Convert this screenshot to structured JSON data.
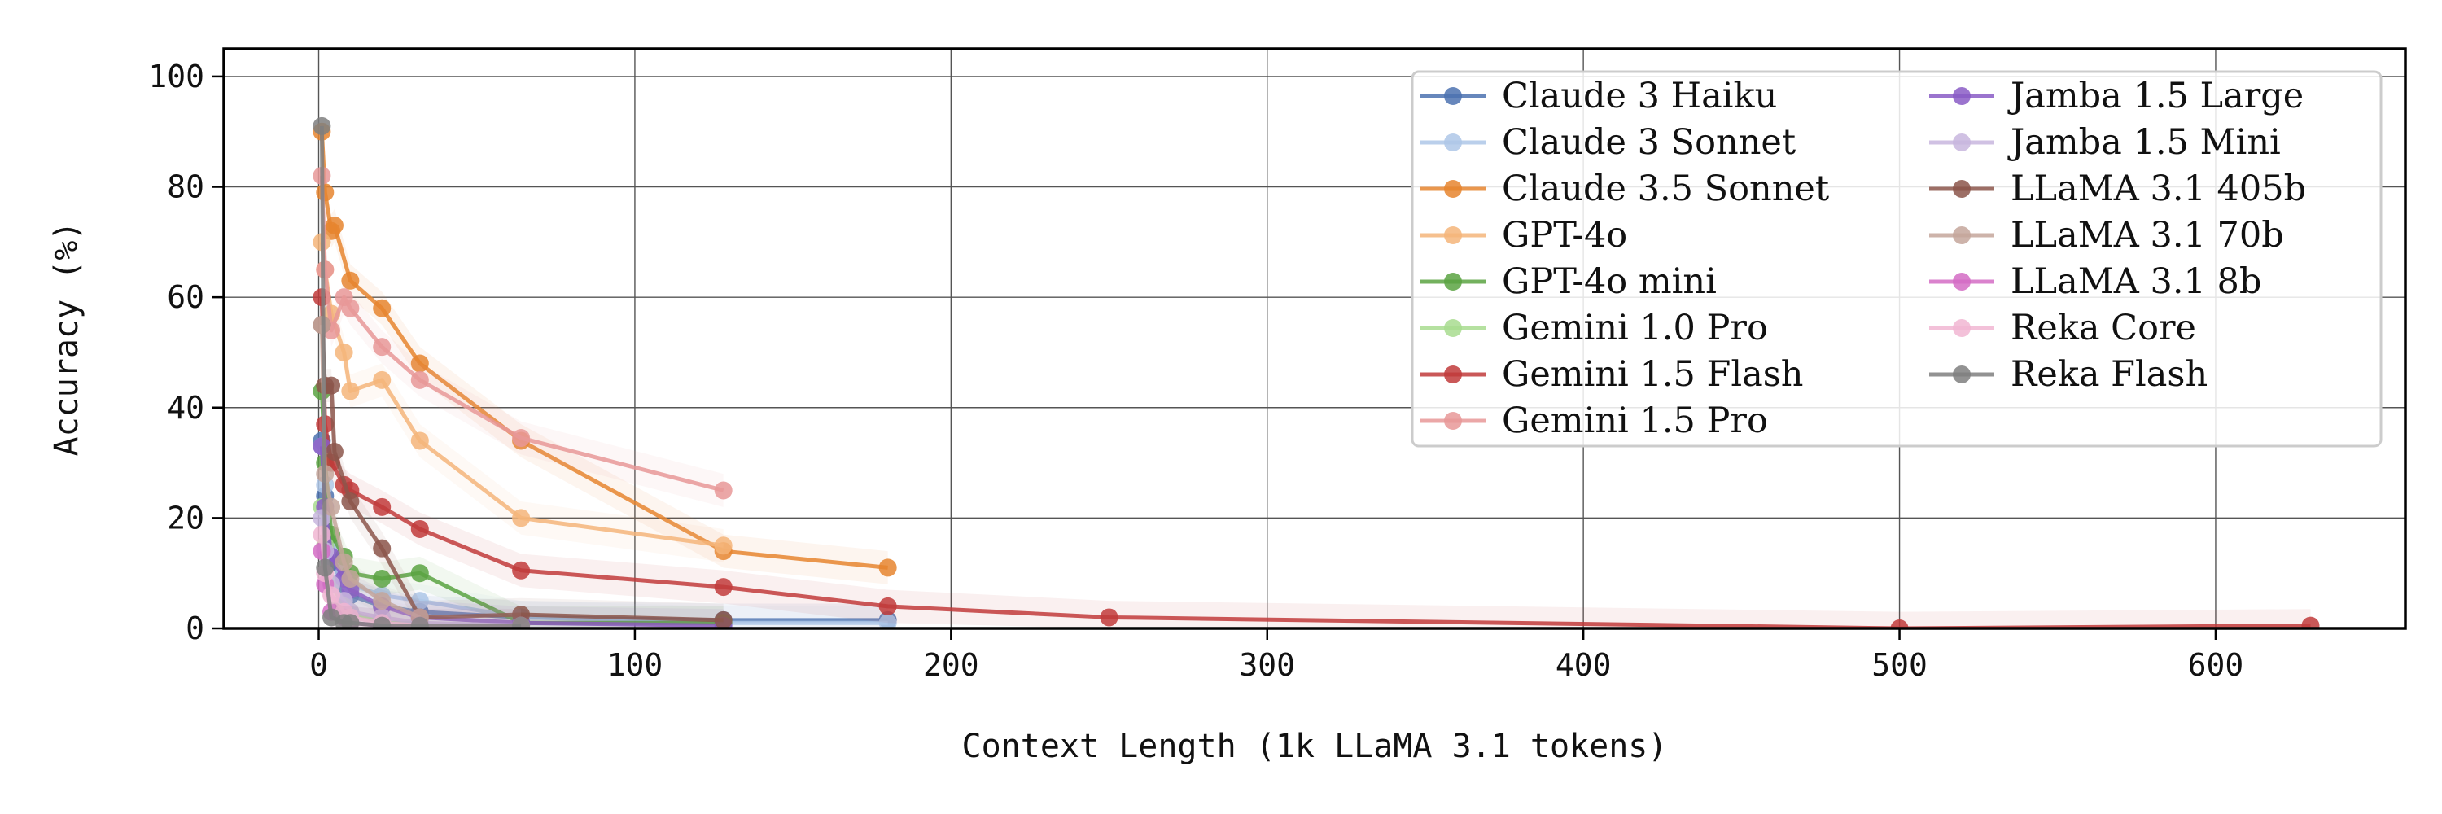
{
  "chart_data": {
    "type": "line",
    "title": "",
    "xlabel": "Context Length (1k LLaMA 3.1 tokens)",
    "ylabel": "Accuracy (%)",
    "xlim": [
      -30,
      660
    ],
    "ylim": [
      0,
      105
    ],
    "xticks": [
      0,
      100,
      200,
      300,
      400,
      500,
      600
    ],
    "yticks": [
      0,
      20,
      40,
      60,
      80,
      100
    ],
    "grid": true,
    "legend": {
      "position": "top-right",
      "columns": 2
    },
    "series": [
      {
        "name": "Claude 3 Haiku",
        "color": "#4c72b0",
        "x": [
          1,
          2,
          4,
          8,
          10,
          20,
          32,
          64,
          128,
          180
        ],
        "y": [
          34,
          24,
          12,
          8,
          6,
          4,
          3,
          2,
          1.5,
          1.5
        ]
      },
      {
        "name": "Claude 3 Sonnet",
        "color": "#aec7e8",
        "x": [
          1,
          2,
          4,
          8,
          10,
          20,
          32,
          64,
          128,
          180
        ],
        "y": [
          33,
          26,
          15,
          10,
          8,
          6,
          5,
          2,
          1,
          1
        ]
      },
      {
        "name": "Claude 3.5 Sonnet",
        "color": "#e6852f",
        "x": [
          1,
          2,
          4,
          5,
          10,
          20,
          32,
          64,
          128,
          180
        ],
        "y": [
          90,
          79,
          72,
          73,
          63,
          58,
          48,
          34,
          14,
          11
        ]
      },
      {
        "name": "GPT-4o",
        "color": "#f4b57a",
        "x": [
          1,
          2,
          4,
          8,
          10,
          20,
          32,
          64,
          128
        ],
        "y": [
          70,
          65,
          57,
          50,
          43,
          45,
          34,
          20,
          15
        ]
      },
      {
        "name": "GPT-4o mini",
        "color": "#5ba342",
        "x": [
          1,
          2,
          4,
          8,
          10,
          20,
          32,
          64,
          128
        ],
        "y": [
          43,
          30,
          17,
          13,
          10,
          9,
          10,
          1,
          1
        ]
      },
      {
        "name": "Gemini 1.0 Pro",
        "color": "#a8dc8f",
        "x": [
          1,
          2,
          4,
          8,
          10,
          20,
          32
        ],
        "y": [
          22,
          15,
          8,
          4,
          3,
          1,
          1
        ]
      },
      {
        "name": "Gemini 1.5 Flash",
        "color": "#c13b3b",
        "x": [
          1,
          2,
          4,
          8,
          10,
          20,
          32,
          64,
          128,
          180,
          250,
          500,
          630
        ],
        "y": [
          60,
          37,
          30,
          26,
          25,
          22,
          18,
          10.5,
          7.5,
          4,
          2,
          0,
          0.5
        ]
      },
      {
        "name": "Gemini 1.5 Pro",
        "color": "#e89898",
        "x": [
          1,
          2,
          4,
          8,
          10,
          20,
          32,
          64,
          128
        ],
        "y": [
          82,
          65,
          54,
          60,
          58,
          51,
          45,
          34.5,
          25
        ]
      },
      {
        "name": "Jamba 1.5 Large",
        "color": "#8a5cc5",
        "x": [
          1,
          2,
          4,
          8,
          10,
          20,
          32,
          64,
          128
        ],
        "y": [
          33,
          22,
          13,
          9,
          7,
          4,
          2,
          1,
          0.5
        ]
      },
      {
        "name": "Jamba 1.5 Mini",
        "color": "#c8b6de",
        "x": [
          1,
          2,
          4,
          8,
          10,
          20,
          32,
          64
        ],
        "y": [
          20,
          14,
          8,
          5,
          3,
          2,
          1,
          0.5
        ]
      },
      {
        "name": "LLaMA 3.1 405b",
        "color": "#8c564b",
        "x": [
          1,
          2,
          4,
          5,
          10,
          20,
          32,
          64,
          128
        ],
        "y": [
          55,
          44,
          44,
          32,
          23,
          14.5,
          2,
          2.5,
          1.5
        ]
      },
      {
        "name": "LLaMA 3.1 70b",
        "color": "#c4a69b",
        "x": [
          1,
          2,
          4,
          8,
          10,
          20,
          32
        ],
        "y": [
          55,
          28,
          22,
          12,
          9,
          5,
          2
        ]
      },
      {
        "name": "LLaMA 3.1 8b",
        "color": "#d46cc4",
        "x": [
          1,
          2,
          4,
          8,
          10,
          20,
          32
        ],
        "y": [
          14,
          8,
          3,
          2,
          1,
          0.5,
          0.5
        ]
      },
      {
        "name": "Reka Core",
        "color": "#f1b6d2",
        "x": [
          1,
          2,
          4,
          8,
          10,
          20,
          32,
          64
        ],
        "y": [
          17,
          10,
          6,
          3,
          2,
          1,
          0.5,
          0.5
        ]
      },
      {
        "name": "Reka Flash",
        "color": "#7f7f7f",
        "x": [
          1,
          2,
          4,
          8,
          10,
          20,
          32,
          64
        ],
        "y": [
          91,
          11,
          2,
          1,
          1,
          0.5,
          0.5,
          0.5
        ]
      }
    ]
  }
}
